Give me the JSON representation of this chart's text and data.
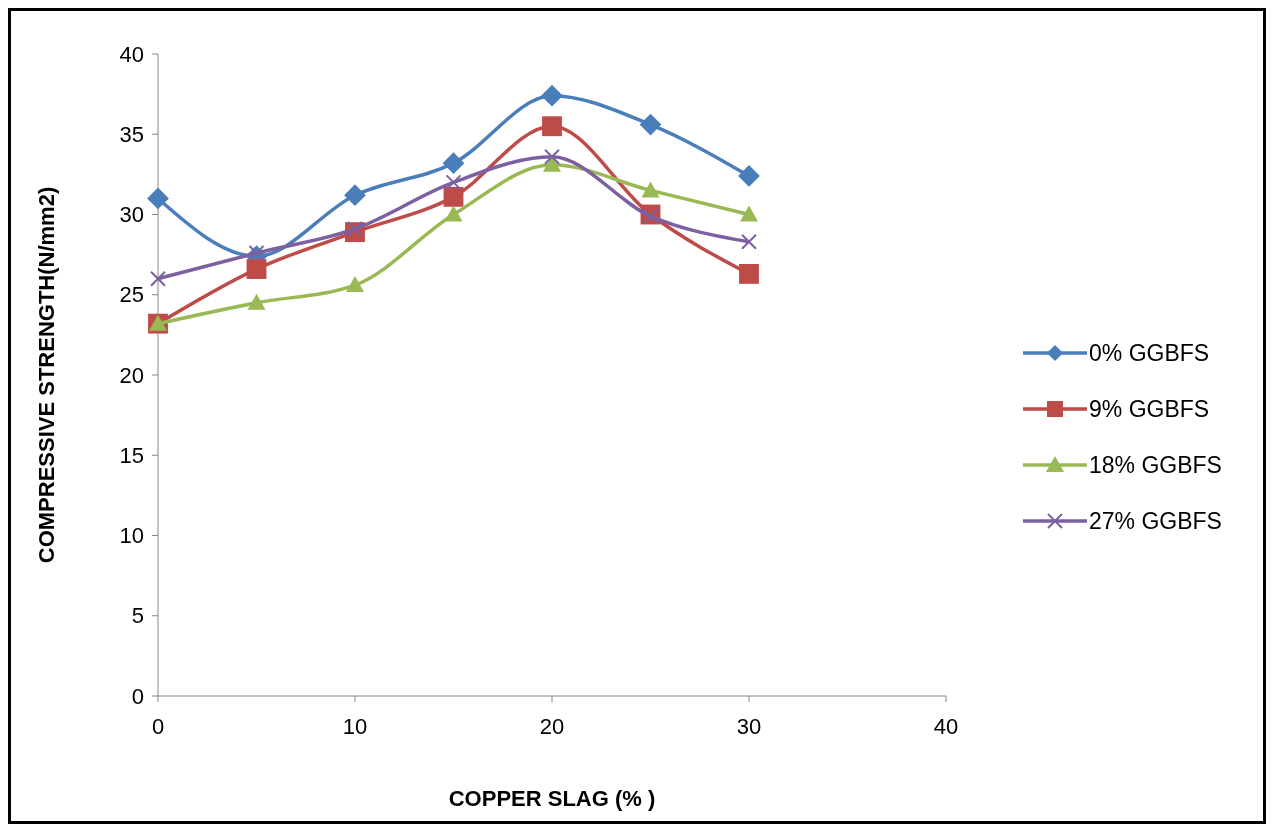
{
  "chart_data": {
    "type": "line",
    "xlabel": "COPPER SLAG (% )",
    "ylabel": "COMPRESSIVE STRENGTH(N/mm2)",
    "x": [
      0,
      5,
      10,
      15,
      20,
      25,
      30
    ],
    "xlim": [
      0,
      40
    ],
    "xticks": [
      0,
      10,
      20,
      30,
      40
    ],
    "ylim": [
      0,
      40
    ],
    "yticks": [
      0,
      5,
      10,
      15,
      20,
      25,
      30,
      35,
      40
    ],
    "grid": false,
    "legend": "right",
    "series": [
      {
        "name": "0% GGBFS",
        "color": "#4a7ebb",
        "marker": "diamond",
        "values": [
          31.0,
          27.4,
          31.2,
          33.2,
          37.4,
          35.6,
          32.4
        ]
      },
      {
        "name": "9% GGBFS",
        "color": "#be4b48",
        "marker": "square",
        "values": [
          23.2,
          26.6,
          28.9,
          31.1,
          35.5,
          30.0,
          26.3
        ]
      },
      {
        "name": "18% GGBFS",
        "color": "#98b954",
        "marker": "triangle",
        "values": [
          23.2,
          24.5,
          25.6,
          30.0,
          33.1,
          31.5,
          30.0
        ]
      },
      {
        "name": "27% GGBFS",
        "color": "#7d60a0",
        "marker": "cross",
        "values": [
          26.0,
          27.6,
          29.1,
          32.0,
          33.6,
          29.9,
          28.3
        ]
      }
    ]
  }
}
